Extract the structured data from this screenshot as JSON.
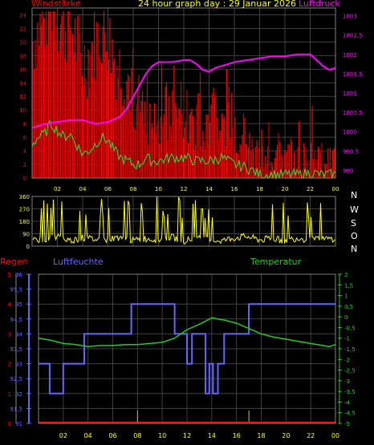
{
  "header": {
    "title": "24 hour graph day : 29 Januar 2026",
    "left_label": "Windstärke",
    "right_label": "Luftdruck"
  },
  "bottom_header": {
    "regen_label": "Regen",
    "humidity_label": "Luftfeuchte",
    "temperature_label": "Temperatur"
  },
  "direction_labels": [
    "N",
    "W",
    "S",
    "O",
    "N"
  ],
  "colors": {
    "wind": "#ff0000",
    "gust": "#cc0000",
    "avg_wind": "#33cc33",
    "pressure": "#ff00ff",
    "direction": "#ffff00",
    "humidity": "#6666ff",
    "temperature": "#22cc22",
    "rain": "#ff0000",
    "rain_ticks": "#cccc00",
    "grid": "#404040",
    "frame": "#808080"
  },
  "chart_data": [
    {
      "type": "line",
      "title": "24 hour graph day : 29 Januar 2026",
      "x_ticks": [
        "02",
        "04",
        "06",
        "08",
        "10",
        "12",
        "14",
        "16",
        "18",
        "20",
        "22",
        "00"
      ],
      "xlim": [
        0,
        24
      ],
      "left_axis": {
        "label": "Windstärke",
        "ticks": [
          0,
          2,
          4,
          6,
          8,
          10,
          12,
          14,
          16,
          18,
          20,
          22,
          24
        ],
        "ylim": [
          0,
          25
        ]
      },
      "right_axis": {
        "label": "Luftdruck",
        "ticks": [
          "999",
          "999,5",
          "1000",
          "1000,5",
          "1001",
          "1001,5",
          "1002",
          "1002,5",
          "1003"
        ],
        "ylim": [
          998.8,
          1003.2
        ]
      },
      "series": [
        {
          "name": "Luftdruck",
          "axis": "right",
          "x": [
            0,
            1,
            2,
            3,
            4,
            5,
            6,
            7,
            7.5,
            8,
            8.5,
            9,
            9.5,
            10,
            11,
            12,
            12.5,
            13,
            13.5,
            14,
            14.5,
            15,
            15.5,
            16,
            17,
            18,
            19,
            20,
            21,
            22,
            22.5,
            23,
            23.5,
            24
          ],
          "y": [
            1000.1,
            1000.2,
            1000.25,
            1000.3,
            1000.3,
            1000.2,
            1000.25,
            1000.4,
            1000.6,
            1000.9,
            1001.2,
            1001.5,
            1001.7,
            1001.8,
            1001.8,
            1001.85,
            1001.85,
            1001.75,
            1001.6,
            1001.55,
            1001.65,
            1001.7,
            1001.75,
            1001.8,
            1001.85,
            1001.9,
            1001.95,
            1001.95,
            1002.0,
            1002.0,
            1001.85,
            1001.7,
            1001.6,
            1001.65
          ]
        },
        {
          "name": "Windstärke (Mittel)",
          "axis": "left",
          "x": [
            0,
            0.5,
            1,
            1.5,
            2,
            2.5,
            3,
            3.5,
            4,
            4.5,
            5,
            5.5,
            6,
            6.5,
            7,
            7.5,
            8,
            8.5,
            9,
            9.5,
            10,
            11,
            12,
            13,
            14,
            15,
            16,
            17,
            18,
            19,
            20,
            21,
            22,
            23,
            24
          ],
          "y": [
            5,
            6,
            6.5,
            8,
            7,
            6,
            6.5,
            5,
            3.5,
            4,
            5,
            6,
            5.5,
            4,
            3,
            2.5,
            2,
            2,
            3,
            2.5,
            2.5,
            3,
            3,
            2.5,
            2.5,
            3,
            2,
            1.5,
            0.5,
            0.5,
            0.5,
            0.5,
            0.8,
            0.5,
            0.5
          ]
        }
      ]
    },
    {
      "type": "line",
      "title": "",
      "y_ticks": [
        0,
        90,
        180,
        270,
        360
      ],
      "ylim": [
        0,
        360
      ],
      "xlim": [
        0,
        24
      ],
      "series": [
        {
          "name": "Windrichtung",
          "x": [
            0,
            1,
            2,
            3,
            4,
            5,
            6,
            7,
            8,
            9,
            10,
            11,
            12,
            13,
            14,
            15,
            16,
            17,
            18,
            19,
            20,
            21,
            22,
            23,
            24
          ],
          "y": [
            60,
            45,
            70,
            40,
            60,
            50,
            45,
            70,
            40,
            55,
            45,
            65,
            40,
            55,
            45,
            40,
            60,
            70,
            45,
            55,
            40,
            60,
            45,
            50,
            55
          ]
        }
      ]
    },
    {
      "type": "line",
      "title": "",
      "x_ticks": [
        "02",
        "04",
        "06",
        "08",
        "10",
        "12",
        "14",
        "16",
        "18",
        "20",
        "22",
        "00"
      ],
      "xlim": [
        0,
        24
      ],
      "regen_axis": {
        "label": "Regen",
        "ticks": [
          0,
          1,
          2,
          3,
          4,
          5
        ],
        "ylim": [
          0,
          5
        ]
      },
      "humidity_axis": {
        "label": "Luftfeuchte",
        "ticks": [
          "91",
          "91,5",
          "92",
          "92,5",
          "93",
          "93,5",
          "94",
          "94,5",
          "95",
          "95,5",
          "96"
        ],
        "ylim": [
          91,
          96
        ]
      },
      "temperature_axis": {
        "label": "Temperatur",
        "ticks": [
          "-5",
          "-4,5",
          "-4",
          "-3,5",
          "-3",
          "-2,5",
          "-2",
          "-1,5",
          "-1",
          "-0,5",
          "0",
          "0,5",
          "1",
          "1,5",
          "2"
        ],
        "ylim": [
          -5,
          2
        ]
      },
      "series": [
        {
          "name": "Luftfeuchte",
          "axis": "humidity",
          "x": [
            0,
            0.9,
            0.9,
            2,
            2,
            3.7,
            3.7,
            7.5,
            7.5,
            11,
            11,
            12,
            12,
            12.4,
            12.4,
            13.5,
            13.5,
            13.8,
            13.8,
            14.1,
            14.1,
            14.5,
            14.5,
            15,
            15,
            17,
            17,
            24
          ],
          "y": [
            93,
            93,
            92,
            92,
            93,
            93,
            94,
            94,
            95,
            95,
            94,
            94,
            93,
            93,
            94,
            94,
            92,
            92,
            93,
            93,
            92,
            92,
            93,
            93,
            94,
            94,
            95,
            95
          ]
        },
        {
          "name": "Temperatur",
          "axis": "temperature",
          "x": [
            0,
            1,
            2,
            3,
            4,
            5,
            6,
            7,
            8,
            9,
            10,
            11,
            12,
            13,
            14,
            15,
            16,
            17,
            18,
            19,
            20,
            21,
            22,
            23,
            23.5,
            24
          ],
          "y": [
            -1.0,
            -1.1,
            -1.25,
            -1.3,
            -1.4,
            -1.35,
            -1.35,
            -1.3,
            -1.3,
            -1.25,
            -1.2,
            -1.0,
            -0.6,
            -0.35,
            -0.05,
            -0.15,
            -0.3,
            -0.55,
            -0.8,
            -0.95,
            -1.05,
            -1.15,
            -1.25,
            -1.35,
            -1.4,
            -1.3
          ]
        },
        {
          "name": "Regen",
          "axis": "regen",
          "x": [
            0,
            24
          ],
          "y": [
            0,
            0
          ]
        }
      ]
    }
  ]
}
